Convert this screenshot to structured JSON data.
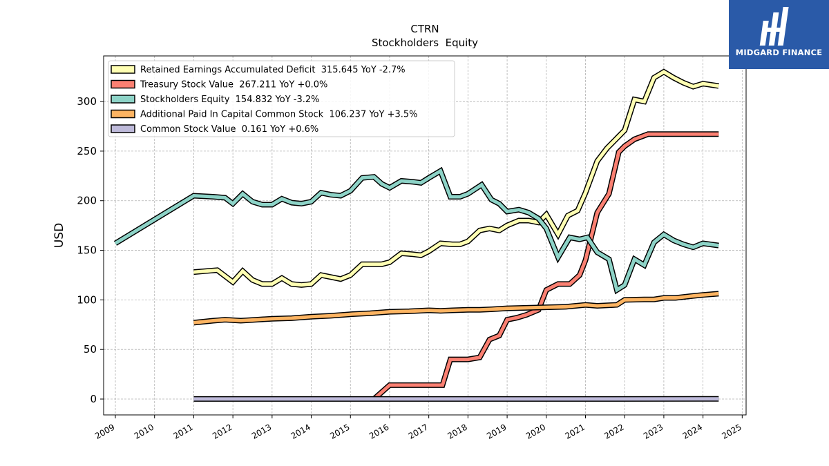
{
  "brand": {
    "name": "MIDGARD FINANCE",
    "background": "#2a5aa8",
    "icon": "midgard-logo-icon"
  },
  "chart_data": {
    "type": "line",
    "title": "CTRN",
    "subtitle": "Stockholders  Equity",
    "ylabel": "USD",
    "xlabel": "",
    "xlim": [
      2008.7,
      2025.1
    ],
    "ylim": [
      -16,
      346
    ],
    "x_ticks": [
      "2009",
      "2010",
      "2011",
      "2012",
      "2013",
      "2014",
      "2015",
      "2016",
      "2017",
      "2018",
      "2019",
      "2020",
      "2021",
      "2022",
      "2023",
      "2024",
      "2025"
    ],
    "y_ticks": [
      0,
      50,
      100,
      150,
      200,
      250,
      300
    ],
    "grid": true,
    "legend_position": "top-left",
    "series": [
      {
        "name": "Retained Earnings Accumulated Deficit",
        "legend": "Retained Earnings Accumulated Deficit  315.645 YoY -2.7%",
        "color": "#ffffb3",
        "points": [
          [
            2011.0,
            128
          ],
          [
            2011.3,
            129
          ],
          [
            2011.6,
            130
          ],
          [
            2011.8,
            124
          ],
          [
            2012.0,
            118
          ],
          [
            2012.25,
            129
          ],
          [
            2012.5,
            120
          ],
          [
            2012.75,
            116
          ],
          [
            2013.0,
            116
          ],
          [
            2013.25,
            122
          ],
          [
            2013.5,
            116
          ],
          [
            2013.75,
            115
          ],
          [
            2014.0,
            116
          ],
          [
            2014.25,
            125
          ],
          [
            2014.5,
            123
          ],
          [
            2014.75,
            121
          ],
          [
            2015.0,
            125
          ],
          [
            2015.3,
            136
          ],
          [
            2015.6,
            136
          ],
          [
            2015.8,
            136
          ],
          [
            2016.0,
            138
          ],
          [
            2016.3,
            147
          ],
          [
            2016.6,
            146
          ],
          [
            2016.8,
            145
          ],
          [
            2017.0,
            149
          ],
          [
            2017.3,
            157
          ],
          [
            2017.6,
            156
          ],
          [
            2017.8,
            156
          ],
          [
            2018.0,
            159
          ],
          [
            2018.3,
            170
          ],
          [
            2018.55,
            172
          ],
          [
            2018.8,
            170
          ],
          [
            2019.0,
            175
          ],
          [
            2019.3,
            180
          ],
          [
            2019.55,
            180
          ],
          [
            2019.8,
            178
          ],
          [
            2020.0,
            186
          ],
          [
            2020.3,
            166
          ],
          [
            2020.55,
            185
          ],
          [
            2020.8,
            190
          ],
          [
            2021.0,
            208
          ],
          [
            2021.3,
            240
          ],
          [
            2021.55,
            253
          ],
          [
            2021.8,
            263
          ],
          [
            2022.0,
            271
          ],
          [
            2022.25,
            302
          ],
          [
            2022.5,
            300
          ],
          [
            2022.75,
            324
          ],
          [
            2023.0,
            330
          ],
          [
            2023.25,
            324
          ],
          [
            2023.5,
            319
          ],
          [
            2023.75,
            315
          ],
          [
            2024.0,
            318
          ],
          [
            2024.4,
            315.645
          ]
        ]
      },
      {
        "name": "Treasury Stock Value",
        "legend": "Treasury Stock Value  267.211 YoY +0.0%",
        "color": "#fb8072",
        "points": [
          [
            2015.6,
            0
          ],
          [
            2016.0,
            14
          ],
          [
            2016.25,
            14
          ],
          [
            2016.5,
            14
          ],
          [
            2016.75,
            14
          ],
          [
            2017.0,
            14
          ],
          [
            2017.35,
            14
          ],
          [
            2017.55,
            40
          ],
          [
            2017.8,
            40
          ],
          [
            2018.0,
            40
          ],
          [
            2018.3,
            42
          ],
          [
            2018.55,
            60
          ],
          [
            2018.8,
            64
          ],
          [
            2019.0,
            80
          ],
          [
            2019.25,
            82
          ],
          [
            2019.5,
            85
          ],
          [
            2019.8,
            90
          ],
          [
            2020.0,
            110
          ],
          [
            2020.3,
            116
          ],
          [
            2020.6,
            116
          ],
          [
            2020.85,
            125
          ],
          [
            2021.0,
            140
          ],
          [
            2021.3,
            188
          ],
          [
            2021.6,
            207
          ],
          [
            2021.85,
            249
          ],
          [
            2022.0,
            255
          ],
          [
            2022.25,
            262
          ],
          [
            2022.6,
            267.211
          ],
          [
            2022.8,
            267.211
          ],
          [
            2024.4,
            267.211
          ]
        ]
      },
      {
        "name": "Stockholders Equity",
        "legend": "Stockholders Equity  154.832 YoY -3.2%",
        "color": "#8dd3c7",
        "points": [
          [
            2009.0,
            157
          ],
          [
            2011.0,
            205
          ],
          [
            2011.5,
            204
          ],
          [
            2011.8,
            203
          ],
          [
            2012.0,
            197
          ],
          [
            2012.25,
            207
          ],
          [
            2012.5,
            199
          ],
          [
            2012.75,
            196
          ],
          [
            2013.0,
            196
          ],
          [
            2013.25,
            202
          ],
          [
            2013.5,
            198
          ],
          [
            2013.75,
            197
          ],
          [
            2014.0,
            199
          ],
          [
            2014.25,
            208
          ],
          [
            2014.5,
            206
          ],
          [
            2014.75,
            205
          ],
          [
            2015.0,
            210
          ],
          [
            2015.3,
            223
          ],
          [
            2015.6,
            224
          ],
          [
            2015.8,
            217
          ],
          [
            2016.0,
            213
          ],
          [
            2016.3,
            220
          ],
          [
            2016.6,
            219
          ],
          [
            2016.8,
            218
          ],
          [
            2017.0,
            223
          ],
          [
            2017.3,
            230
          ],
          [
            2017.55,
            204
          ],
          [
            2017.8,
            204
          ],
          [
            2018.0,
            207
          ],
          [
            2018.35,
            216
          ],
          [
            2018.6,
            201
          ],
          [
            2018.8,
            197
          ],
          [
            2019.0,
            189
          ],
          [
            2019.3,
            191
          ],
          [
            2019.55,
            188
          ],
          [
            2019.8,
            182
          ],
          [
            2020.0,
            172
          ],
          [
            2020.3,
            143
          ],
          [
            2020.6,
            163
          ],
          [
            2020.85,
            161
          ],
          [
            2021.05,
            163
          ],
          [
            2021.3,
            148
          ],
          [
            2021.6,
            141
          ],
          [
            2021.8,
            110
          ],
          [
            2022.0,
            115
          ],
          [
            2022.25,
            141
          ],
          [
            2022.5,
            135
          ],
          [
            2022.75,
            158
          ],
          [
            2023.0,
            166
          ],
          [
            2023.25,
            160
          ],
          [
            2023.5,
            156
          ],
          [
            2023.75,
            153
          ],
          [
            2024.0,
            157
          ],
          [
            2024.4,
            154.832
          ]
        ]
      },
      {
        "name": "Additional Paid In Capital Common Stock",
        "legend": "Additional Paid In Capital Common Stock  106.237 YoY +3.5%",
        "color": "#fdb462",
        "points": [
          [
            2011.0,
            77
          ],
          [
            2011.5,
            79
          ],
          [
            2011.8,
            80
          ],
          [
            2012.2,
            79
          ],
          [
            2012.6,
            80
          ],
          [
            2013.0,
            81
          ],
          [
            2013.5,
            81.5
          ],
          [
            2014.0,
            83
          ],
          [
            2014.5,
            84
          ],
          [
            2015.0,
            85.5
          ],
          [
            2015.5,
            86.5
          ],
          [
            2016.0,
            88
          ],
          [
            2016.5,
            88.5
          ],
          [
            2017.0,
            89.5
          ],
          [
            2017.3,
            89
          ],
          [
            2017.6,
            89.5
          ],
          [
            2018.0,
            90
          ],
          [
            2018.3,
            90
          ],
          [
            2018.6,
            90.5
          ],
          [
            2019.0,
            91.5
          ],
          [
            2019.5,
            92
          ],
          [
            2020.0,
            92.5
          ],
          [
            2020.5,
            93
          ],
          [
            2021.0,
            95
          ],
          [
            2021.3,
            94
          ],
          [
            2021.8,
            95
          ],
          [
            2022.0,
            100
          ],
          [
            2022.5,
            100.5
          ],
          [
            2022.75,
            100.5
          ],
          [
            2023.0,
            102
          ],
          [
            2023.3,
            102
          ],
          [
            2023.75,
            104
          ],
          [
            2024.0,
            105
          ],
          [
            2024.4,
            106.237
          ]
        ]
      },
      {
        "name": "Common Stock Value",
        "legend": "Common Stock Value  0.161 YoY +0.6%",
        "color": "#bebada",
        "points": [
          [
            2011.0,
            0.1
          ],
          [
            2024.4,
            0.161
          ]
        ]
      }
    ]
  }
}
